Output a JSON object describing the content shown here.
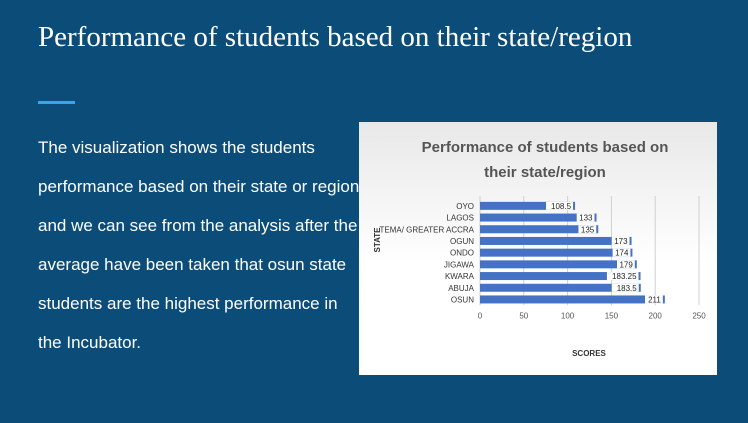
{
  "slide": {
    "title": "Performance of students based on their state/region",
    "body": "The visualization shows the students performance based on their state or region and we can see from the analysis after the average have been taken that osun state students are the highest performance in the Incubator."
  },
  "colors": {
    "background": "#0b4d78",
    "accent": "#3ba4e8",
    "bar": "#4472c4"
  },
  "chart_data": {
    "type": "bar",
    "orientation": "horizontal",
    "title": "Performance of students based on their state/region",
    "xlabel": "SCORES",
    "ylabel": "STATE",
    "categories": [
      "OYO",
      "LAGOS",
      "TEMA/ GREATER ACCRA",
      "OGUN",
      "ONDO",
      "JIGAWA",
      "KWARA",
      "ABUJA",
      "OSUN"
    ],
    "values": [
      108.5,
      133,
      135,
      173,
      174,
      179,
      183.25,
      183.5,
      211
    ],
    "value_labels": [
      "108.5",
      "133",
      "135",
      "173",
      "174",
      "179",
      "183.25",
      "183.5",
      "211"
    ],
    "xlim": [
      0,
      250
    ],
    "xticks": [
      "0",
      "50",
      "100",
      "150",
      "200",
      "250"
    ],
    "grid": true,
    "legend": "none"
  }
}
